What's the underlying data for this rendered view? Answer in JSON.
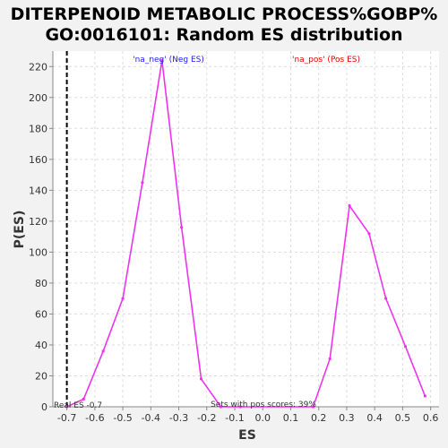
{
  "chart_data": {
    "type": "line",
    "title_line1": "DITERPENOID METABOLIC PROCESS%GOBP%",
    "title_line2": "GO:0016101: Random ES distribution",
    "xlabel": "ES",
    "ylabel": "P(ES)",
    "xlim": [
      -0.75,
      0.63
    ],
    "ylim": [
      0,
      230
    ],
    "x_ticks": [
      -0.7,
      -0.6,
      -0.5,
      -0.4,
      -0.3,
      -0.2,
      -0.1,
      0.0,
      0.1,
      0.2,
      0.3,
      0.4,
      0.5,
      0.6
    ],
    "x_tick_labels": [
      "-0.7",
      "-0.6",
      "-0.5",
      "-0.4",
      "-0.3",
      "-0.2",
      "-0.1",
      "0.0",
      "0.1",
      "0.2",
      "0.3",
      "0.4",
      "0.5",
      "0.6"
    ],
    "y_ticks": [
      0,
      20,
      40,
      60,
      80,
      100,
      120,
      140,
      160,
      180,
      200,
      220
    ],
    "y_tick_labels": [
      "0",
      "20",
      "40",
      "60",
      "80",
      "100",
      "120",
      "140",
      "160",
      "180",
      "200",
      "220"
    ],
    "grid": true,
    "series_color": "#ee33ee",
    "series": [
      {
        "name": "",
        "x": [
          -0.7,
          -0.64,
          -0.57,
          -0.5,
          -0.43,
          -0.36,
          -0.29,
          -0.22,
          -0.15,
          -0.08,
          0.18,
          0.24,
          0.31,
          0.38,
          0.44,
          0.51,
          0.58
        ],
        "y": [
          0,
          5,
          36,
          70,
          145,
          224,
          116,
          18,
          0,
          0,
          0,
          31,
          130,
          112,
          70,
          39,
          7
        ]
      }
    ],
    "real_es": -0.7,
    "real_es_label": "Real ES -0.7",
    "neg_label": "'na_neg' (Neg ES)",
    "pos_label": "'na_pos' (Pos ES)",
    "pos_scores_label": "Sets with pos scores: 39%"
  }
}
